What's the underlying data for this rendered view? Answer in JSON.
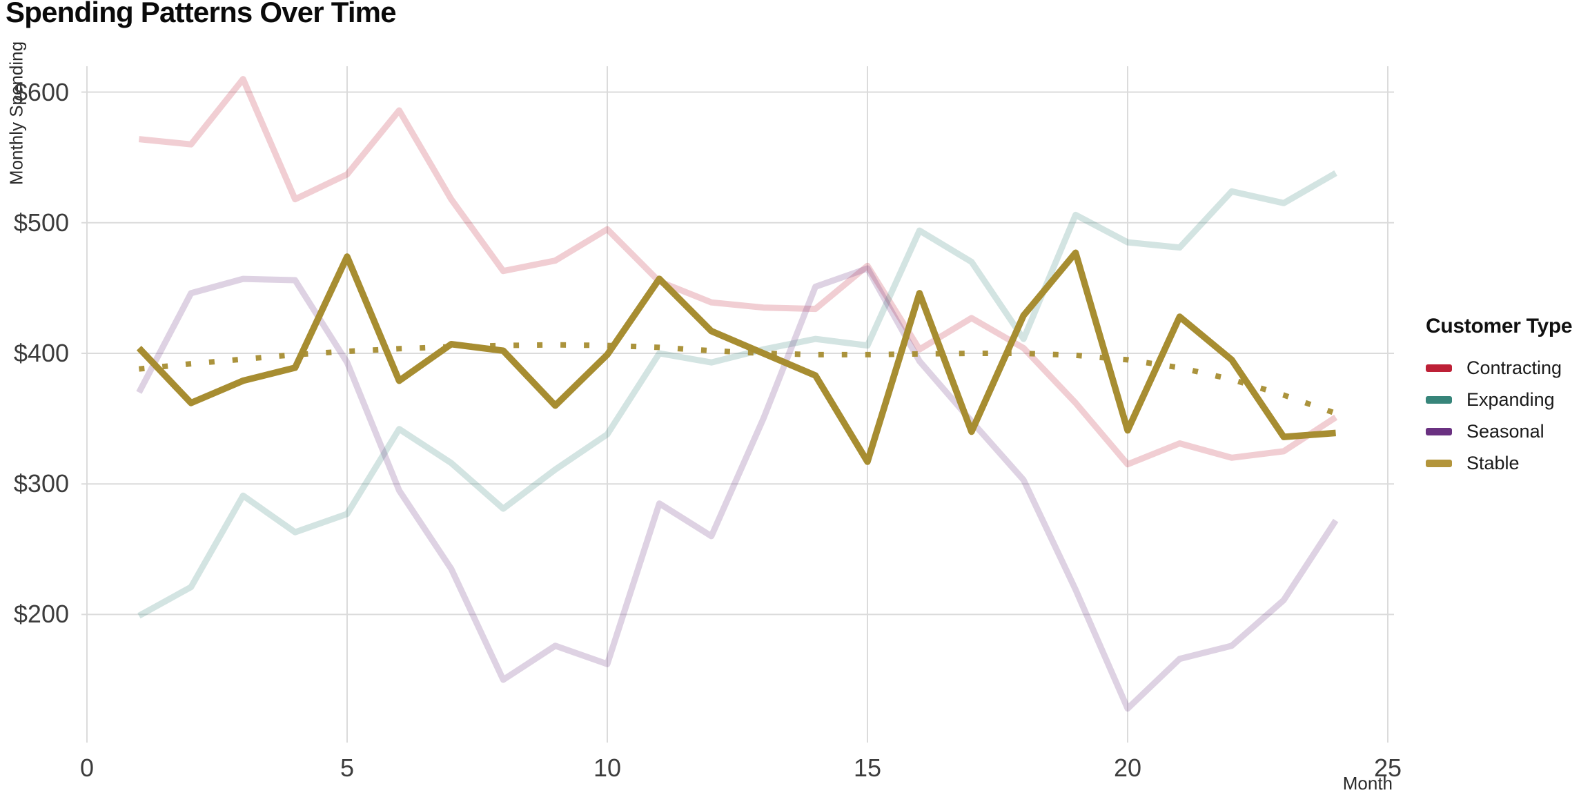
{
  "title": "Spending Patterns Over Time",
  "axes": {
    "x": {
      "label": "Month",
      "ticks": [
        0,
        5,
        10,
        15,
        20,
        25
      ],
      "range": [
        0,
        25
      ]
    },
    "y": {
      "label": "Monthly Spending",
      "ticks": [
        {
          "label": "$600",
          "value": 600
        },
        {
          "label": "$500",
          "value": 500
        },
        {
          "label": "$400",
          "value": 400
        },
        {
          "label": "$300",
          "value": 300
        },
        {
          "label": "$200",
          "value": 200
        }
      ]
    }
  },
  "legend": {
    "title": "Customer Type",
    "items": [
      {
        "label": "Contracting",
        "color": "#bd2036"
      },
      {
        "label": "Expanding",
        "color": "#37857a"
      },
      {
        "label": "Seasonal",
        "color": "#6a3181"
      },
      {
        "label": "Stable",
        "color": "#b3953b"
      }
    ]
  },
  "chart_data": {
    "type": "line",
    "title": "Spending Patterns Over Time",
    "xlabel": "Month",
    "ylabel": "Monthly Spending",
    "xlim": [
      0,
      25
    ],
    "ylim": [
      110,
      640
    ],
    "grid": true,
    "legend_position": "right",
    "x": [
      1,
      2,
      3,
      4,
      5,
      6,
      7,
      8,
      9,
      10,
      11,
      12,
      13,
      14,
      15,
      16,
      17,
      18,
      19,
      20,
      21,
      22,
      23,
      24
    ],
    "series": [
      {
        "name": "Contracting",
        "color": "#bd2036",
        "style": "faded",
        "values": [
          564,
          560,
          610,
          518,
          537,
          586,
          518,
          463,
          471,
          495,
          455,
          439,
          435,
          434,
          467,
          403,
          427,
          404,
          362,
          315,
          331,
          320,
          325,
          351
        ]
      },
      {
        "name": "Expanding",
        "color": "#37857a",
        "style": "faded",
        "values": [
          199,
          221,
          291,
          263,
          277,
          342,
          316,
          281,
          311,
          338,
          400,
          393,
          403,
          411,
          406,
          494,
          470,
          411,
          506,
          485,
          481,
          524,
          515,
          538
        ]
      },
      {
        "name": "Seasonal",
        "color": "#6a3181",
        "style": "faded",
        "values": [
          370,
          446,
          457,
          456,
          393,
          295,
          235,
          150,
          176,
          162,
          285,
          260,
          350,
          451,
          465,
          394,
          348,
          303,
          219,
          128,
          166,
          176,
          211,
          272
        ]
      },
      {
        "name": "Stable trend",
        "color": "#a78d31",
        "style": "dotted",
        "values": [
          388,
          392,
          395.5,
          399,
          401.5,
          403.5,
          405,
          406,
          406.5,
          406,
          404.5,
          402,
          400,
          399,
          399,
          399.5,
          400,
          400,
          398.5,
          395,
          389,
          380,
          368,
          354
        ]
      },
      {
        "name": "Stable",
        "color": "#a78d31",
        "style": "bold",
        "values": [
          404,
          362,
          379,
          389,
          474,
          379,
          407,
          402,
          360,
          399,
          457,
          417,
          400,
          383,
          317,
          446,
          340,
          429,
          477,
          341,
          428,
          395,
          336,
          339
        ]
      }
    ]
  }
}
